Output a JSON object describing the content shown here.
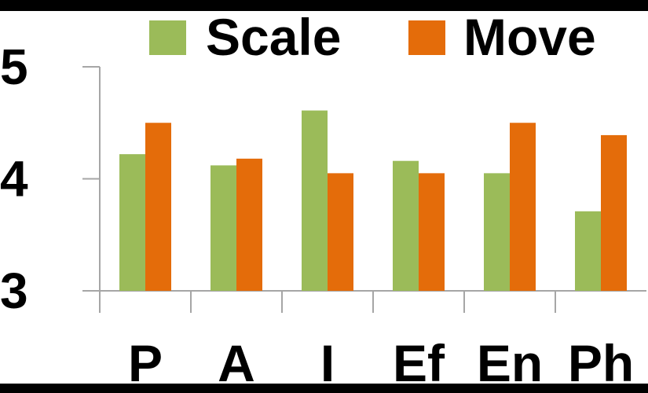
{
  "chart_data": {
    "type": "bar",
    "categories": [
      "P",
      "A",
      "I",
      "Ef",
      "En",
      "Ph"
    ],
    "series": [
      {
        "name": "Scale",
        "values": [
          4.22,
          4.12,
          4.61,
          4.16,
          4.05,
          3.71
        ],
        "color": "#9BBB59"
      },
      {
        "name": "Move",
        "values": [
          4.5,
          4.18,
          4.05,
          4.05,
          4.5,
          4.39
        ],
        "color": "#E46C0A"
      }
    ],
    "ylim": [
      3,
      5
    ],
    "yticks": [
      "3",
      "4",
      "5"
    ],
    "xlabel": "",
    "ylabel": "",
    "title": "",
    "legend_position": "top",
    "grid": false,
    "axis_color": "#A6A6A6"
  }
}
